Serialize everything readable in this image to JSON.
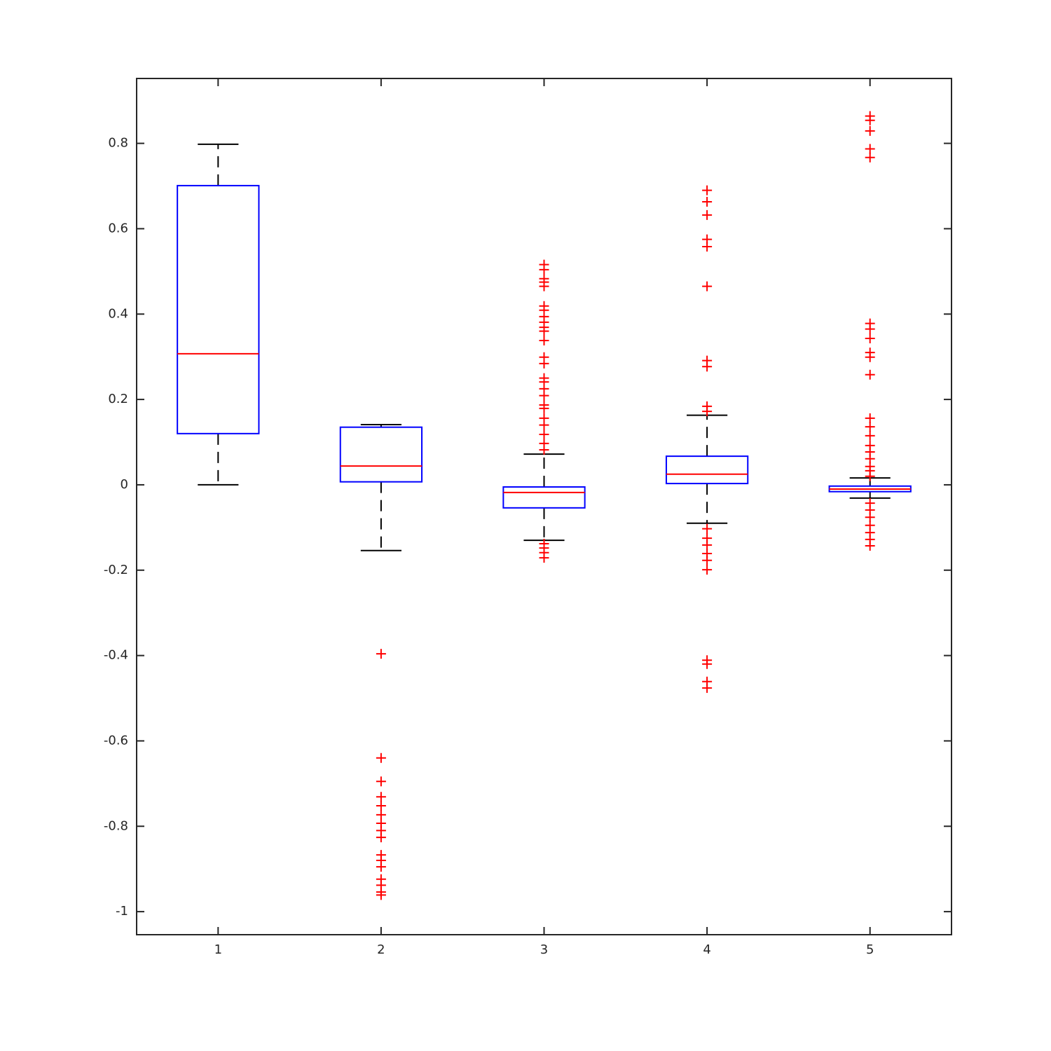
{
  "chart_data": {
    "type": "box",
    "categories": [
      "1",
      "2",
      "3",
      "4",
      "5"
    ],
    "boxes": [
      {
        "whisker_low": 0,
        "q1": 0.12,
        "median": 0.307,
        "q3": 0.701,
        "whisker_high": 0.798,
        "outliers": []
      },
      {
        "whisker_low": -0.154,
        "q1": 0.007,
        "median": 0.044,
        "q3": 0.135,
        "whisker_high": 0.141,
        "outliers": [
          -0.396,
          -0.64,
          -0.695,
          -0.731,
          -0.752,
          -0.773,
          -0.793,
          -0.81,
          -0.826,
          -0.867,
          -0.88,
          -0.895,
          -0.924,
          -0.938,
          -0.954,
          -0.961
        ]
      },
      {
        "whisker_low": -0.13,
        "q1": -0.054,
        "median": -0.018,
        "q3": -0.005,
        "whisker_high": 0.072,
        "outliers": [
          0.516,
          0.504,
          0.483,
          0.475,
          0.465,
          0.419,
          0.409,
          0.394,
          0.381,
          0.369,
          0.36,
          0.338,
          0.299,
          0.284,
          0.25,
          0.241,
          0.225,
          0.209,
          0.187,
          0.179,
          0.156,
          0.14,
          0.118,
          0.097,
          0.082,
          -0.138,
          -0.148,
          -0.159,
          -0.171
        ]
      },
      {
        "whisker_low": -0.09,
        "q1": 0.003,
        "median": 0.025,
        "q3": 0.067,
        "whisker_high": 0.163,
        "outliers": [
          0.69,
          0.663,
          0.632,
          0.575,
          0.558,
          0.465,
          0.291,
          0.277,
          0.184,
          0.172,
          -0.103,
          -0.125,
          -0.141,
          -0.161,
          -0.177,
          -0.199,
          -0.411,
          -0.42,
          -0.461,
          -0.476
        ]
      },
      {
        "whisker_low": -0.031,
        "q1": -0.016,
        "median": -0.01,
        "q3": -0.003,
        "whisker_high": 0.016,
        "outliers": [
          0.864,
          0.854,
          0.829,
          0.787,
          0.767,
          0.378,
          0.365,
          0.343,
          0.31,
          0.299,
          0.258,
          0.156,
          0.136,
          0.115,
          0.092,
          0.077,
          0.061,
          0.043,
          0.033,
          0.02,
          -0.043,
          -0.059,
          -0.076,
          -0.095,
          -0.112,
          -0.128,
          -0.143
        ]
      }
    ],
    "box_color": "#0000ff",
    "median_color": "#ff0000",
    "whisker_color": "#000000",
    "outlier_color": "#ff0000",
    "ylim": [
      -1.054,
      0.952
    ],
    "yticks": [
      -1,
      -0.8,
      -0.6,
      -0.4,
      -0.2,
      0,
      0.2,
      0.4,
      0.6,
      0.8
    ]
  }
}
